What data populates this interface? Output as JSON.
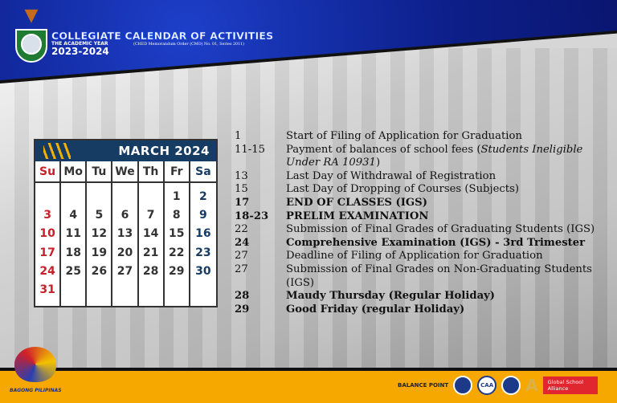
{
  "header": {
    "title": "COLLEGIATE CALENDAR OF ACTIVITIES",
    "subtitle": "THE ACADEMIC YEAR",
    "year": "2023-2024",
    "memo": "(CHED Memorandum Order (CMO) No. 01, Series 2011)"
  },
  "calendar": {
    "month": "MARCH 2024",
    "colors": {
      "header": "#163c63",
      "sunday": "#c8202a",
      "saturday": "#163c63",
      "stripe": "#f2b000"
    },
    "days": [
      "Su",
      "Mo",
      "Tu",
      "We",
      "Th",
      "Fr",
      "Sa"
    ],
    "columns": [
      [
        "",
        "3",
        "10",
        "17",
        "24",
        "31"
      ],
      [
        "",
        "4",
        "11",
        "18",
        "25"
      ],
      [
        "",
        "5",
        "12",
        "19",
        "26"
      ],
      [
        "",
        "6",
        "13",
        "20",
        "27"
      ],
      [
        "",
        "7",
        "14",
        "21",
        "28"
      ],
      [
        "1",
        "8",
        "15",
        "22",
        "29"
      ],
      [
        "2",
        "9",
        "16",
        "23",
        "30"
      ]
    ]
  },
  "events": [
    {
      "day": "1",
      "desc": "Start of Filing of Application for Graduation",
      "bold": false
    },
    {
      "day": "11-15",
      "desc": "Payment of balances of school fees (",
      "italic": "Students Ineligible Under RA 10931",
      "after": ")",
      "bold": false
    },
    {
      "day": "13",
      "desc": "Last Day of Withdrawal of Registration",
      "bold": false
    },
    {
      "day": "15",
      "desc": "Last Day of Dropping of Courses (Subjects)",
      "bold": false
    },
    {
      "day": "17",
      "desc": "END OF CLASSES (IGS)",
      "bold": true
    },
    {
      "day": "18-23",
      "desc": "PRELIM EXAMINATION",
      "bold": true
    },
    {
      "day": "22",
      "desc": "Submission of Final Grades of Graduating Students (IGS)",
      "bold": false
    },
    {
      "day": "24",
      "desc": "Comprehensive Examination (IGS) - 3rd Trimester",
      "bold": true
    },
    {
      "day": "27",
      "desc": "Deadline of Filing of Application for Graduation",
      "bold": false
    },
    {
      "day": "27",
      "desc": "Submission of Final Grades on Non-Graduating Students (IGS)",
      "bold": false
    },
    {
      "day": "28",
      "desc": "Maudy Thursday (Regular Holiday)",
      "bold": true
    },
    {
      "day": "29",
      "desc": "Good Friday (regular Holiday)",
      "bold": true
    }
  ],
  "footer": {
    "left_logo": "BAGONG PILIPINAS",
    "balance": "BALANCE POINT",
    "caa": "CAA",
    "gsa": "Global School Alliance",
    "color": "#f7a800"
  }
}
